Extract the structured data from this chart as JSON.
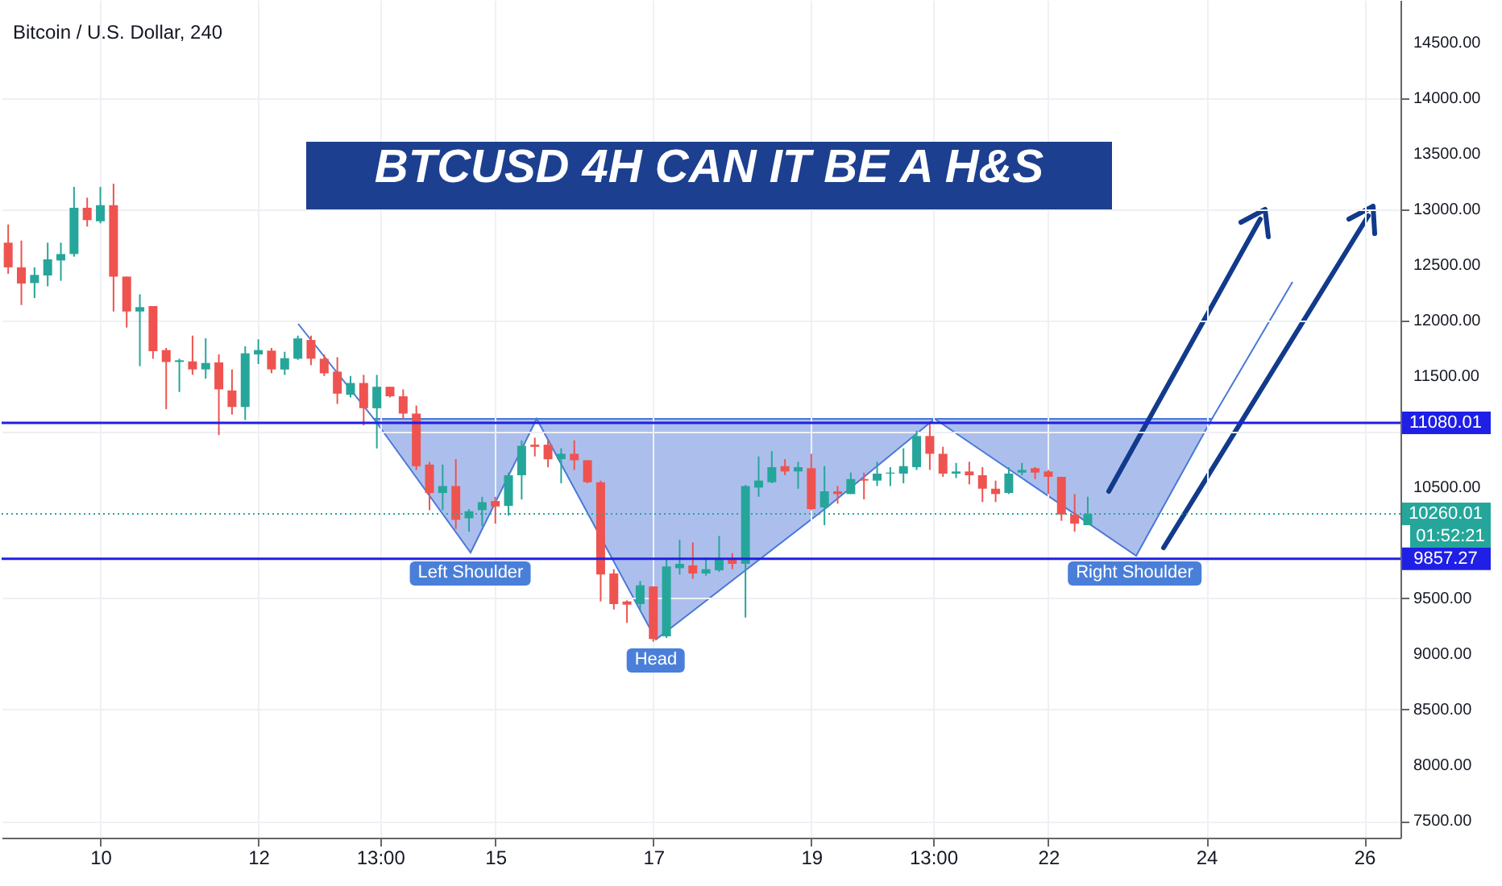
{
  "chart_data": {
    "type": "candlestick",
    "title": "BTCUSD 4H CAN IT BE A H&S",
    "subtitle": "Bitcoin / U.S. Dollar, 240",
    "x": [
      "--07-08T20:00",
      "--07-09T00:00",
      "--07-09T04:00",
      "--07-09T08:00",
      "--07-09T12:00",
      "--07-09T16:00",
      "--07-09T20:00",
      "--07-10T00:00",
      "--07-10T04:00",
      "--07-10T08:00",
      "--07-10T12:00",
      "--07-10T16:00",
      "--07-10T20:00",
      "--07-11T00:00",
      "--07-11T04:00",
      "--07-11T08:00",
      "--07-11T12:00",
      "--07-11T16:00",
      "--07-11T20:00",
      "--07-12T00:00",
      "--07-12T04:00",
      "--07-12T08:00",
      "--07-12T12:00",
      "--07-12T16:00",
      "--07-12T20:00",
      "--07-13T00:00",
      "--07-13T04:00",
      "--07-13T08:00",
      "--07-13T12:00",
      "--07-13T16:00",
      "--07-13T20:00",
      "--07-14T00:00",
      "--07-14T04:00",
      "--07-14T08:00",
      "--07-14T12:00",
      "--07-14T16:00",
      "--07-14T20:00",
      "--07-15T00:00",
      "--07-15T04:00",
      "--07-15T08:00",
      "--07-15T12:00",
      "--07-15T16:00",
      "--07-15T20:00",
      "--07-16T00:00",
      "--07-16T04:00",
      "--07-16T08:00",
      "--07-16T12:00",
      "--07-16T16:00",
      "--07-16T20:00",
      "--07-17T00:00",
      "--07-17T04:00",
      "--07-17T08:00",
      "--07-17T12:00",
      "--07-17T16:00",
      "--07-17T20:00",
      "--07-18T00:00",
      "--07-18T04:00",
      "--07-18T08:00",
      "--07-18T12:00",
      "--07-18T16:00",
      "--07-18T20:00",
      "--07-19T00:00",
      "--07-19T04:00",
      "--07-19T08:00",
      "--07-19T12:00",
      "--07-19T16:00",
      "--07-19T20:00",
      "--07-20T00:00",
      "--07-20T04:00",
      "--07-20T08:00",
      "--07-20T12:00",
      "--07-20T16:00",
      "--07-20T20:00",
      "--07-21T00:00",
      "--07-21T04:00",
      "--07-21T08:00",
      "--07-21T12:00",
      "--07-21T16:00",
      "--07-21T20:00",
      "--07-22T00:00",
      "--07-22T04:00",
      "--07-22T08:00",
      "--07-22T12:00"
    ],
    "ohlc": [
      [
        12700,
        12864,
        12420,
        12478
      ],
      [
        12478,
        12719,
        12139,
        12333
      ],
      [
        12337,
        12478,
        12202,
        12410
      ],
      [
        12405,
        12700,
        12308,
        12550
      ],
      [
        12540,
        12700,
        12357,
        12598
      ],
      [
        12598,
        13202,
        12574,
        13014
      ],
      [
        13014,
        13105,
        12845,
        12903
      ],
      [
        12893,
        13202,
        12874,
        13038
      ],
      [
        13038,
        13231,
        12081,
        12395
      ],
      [
        12395,
        12395,
        11937,
        12081
      ],
      [
        12081,
        12236,
        11589,
        12120
      ],
      [
        12130,
        12130,
        11656,
        11724
      ],
      [
        11734,
        11753,
        11202,
        11627
      ],
      [
        11627,
        11656,
        11357,
        11642
      ],
      [
        11632,
        11864,
        11512,
        11560
      ],
      [
        11560,
        11840,
        11478,
        11618
      ],
      [
        11623,
        11695,
        10970,
        11381
      ],
      [
        11371,
        11560,
        11154,
        11222
      ],
      [
        11222,
        11768,
        11106,
        11705
      ],
      [
        11695,
        11830,
        11608,
        11734
      ],
      [
        11729,
        11753,
        11526,
        11560
      ],
      [
        11559,
        11719,
        11511,
        11661
      ],
      [
        11656,
        11864,
        11646,
        11839
      ],
      [
        11825,
        11864,
        11598,
        11656
      ],
      [
        11656,
        11694,
        11501,
        11525
      ],
      [
        11540,
        11670,
        11250,
        11342
      ],
      [
        11332,
        11501,
        11308,
        11438
      ],
      [
        11438,
        11511,
        11057,
        11211
      ],
      [
        11211,
        11511,
        10849,
        11404
      ],
      [
        11404,
        11404,
        11308,
        11318
      ],
      [
        11318,
        11380,
        11115,
        11163
      ],
      [
        11163,
        11235,
        10656,
        10690
      ],
      [
        10704,
        10728,
        10294,
        10448
      ],
      [
        10448,
        10704,
        10294,
        10511
      ],
      [
        10511,
        10753,
        10125,
        10207
      ],
      [
        10221,
        10303,
        10100,
        10284
      ],
      [
        10294,
        10414,
        10149,
        10366
      ],
      [
        10376,
        10414,
        10173,
        10327
      ],
      [
        10332,
        10632,
        10245,
        10608
      ],
      [
        10608,
        10921,
        10390,
        10873
      ],
      [
        10883,
        10946,
        10777,
        10864
      ],
      [
        10883,
        10921,
        10680,
        10752
      ],
      [
        10753,
        10850,
        10536,
        10801
      ],
      [
        10801,
        10922,
        10656,
        10743
      ],
      [
        10743,
        10743,
        10536,
        10545
      ],
      [
        10545,
        10560,
        9473,
        9715
      ],
      [
        9724,
        9763,
        9401,
        9449
      ],
      [
        9473,
        9483,
        9280,
        9444
      ],
      [
        9449,
        9657,
        9401,
        9618
      ],
      [
        9608,
        9608,
        9111,
        9135
      ],
      [
        9159,
        9859,
        9145,
        9787
      ],
      [
        9772,
        10028,
        9715,
        9811
      ],
      [
        9797,
        10004,
        9676,
        9724
      ],
      [
        9724,
        9869,
        9705,
        9763
      ],
      [
        9753,
        10062,
        9739,
        9850
      ],
      [
        9850,
        9908,
        9763,
        9811
      ],
      [
        9811,
        10521,
        9328,
        10511
      ],
      [
        10497,
        10777,
        10415,
        10560
      ],
      [
        10545,
        10825,
        10536,
        10681
      ],
      [
        10690,
        10753,
        10608,
        10642
      ],
      [
        10642,
        10729,
        10487,
        10681
      ],
      [
        10671,
        10801,
        10294,
        10304
      ],
      [
        10318,
        10690,
        10159,
        10463
      ],
      [
        10463,
        10511,
        10352,
        10439
      ],
      [
        10439,
        10632,
        10439,
        10574
      ],
      [
        10574,
        10632,
        10391,
        10560
      ],
      [
        10560,
        10729,
        10511,
        10623
      ],
      [
        10623,
        10681,
        10511,
        10632
      ],
      [
        10623,
        10850,
        10536,
        10690
      ],
      [
        10681,
        11009,
        10656,
        10961
      ],
      [
        10961,
        11091,
        10656,
        10801
      ],
      [
        10801,
        10864,
        10594,
        10623
      ],
      [
        10623,
        10719,
        10584,
        10642
      ],
      [
        10642,
        10729,
        10526,
        10608
      ],
      [
        10608,
        10681,
        10367,
        10487
      ],
      [
        10487,
        10560,
        10367,
        10439
      ],
      [
        10449,
        10681,
        10439,
        10623
      ],
      [
        10632,
        10719,
        10608,
        10656
      ],
      [
        10671,
        10681,
        10574,
        10632
      ],
      [
        10642,
        10656,
        10439,
        10594
      ],
      [
        10594,
        10594,
        10198,
        10255
      ],
      [
        10255,
        10439,
        10101,
        10173
      ],
      [
        10159,
        10415,
        10159,
        10260
      ]
    ],
    "xlim": [
      "--07-08T18:00",
      "--07-26T11:00"
    ],
    "xticks": [
      {
        "value": "--07-10",
        "label": "10"
      },
      {
        "value": "--07-12",
        "label": "12"
      },
      {
        "value": "--07-13T13:00",
        "label": "13:00"
      },
      {
        "value": "--07-15",
        "label": "15"
      },
      {
        "value": "--07-17",
        "label": "17"
      },
      {
        "value": "--07-19",
        "label": "19"
      },
      {
        "value": "--07-20T13:00",
        "label": "13:00"
      },
      {
        "value": "--07-22",
        "label": "22"
      },
      {
        "value": "--07-24",
        "label": "24"
      },
      {
        "value": "--07-26",
        "label": "26"
      }
    ],
    "ylim": [
      7348,
      14883
    ],
    "yticks": [
      {
        "value": 7500,
        "label": "7500.00"
      },
      {
        "value": 8000,
        "label": "8000.00"
      },
      {
        "value": 8500,
        "label": "8500.00"
      },
      {
        "value": 9000,
        "label": "9000.00"
      },
      {
        "value": 9500,
        "label": "9500.00"
      },
      {
        "value": 10500,
        "label": "10500.00"
      },
      {
        "value": 11000,
        "label": null
      },
      {
        "value": 11500,
        "label": "11500.00"
      },
      {
        "value": 12000,
        "label": "12000.00"
      },
      {
        "value": 12500,
        "label": "12500.00"
      },
      {
        "value": 13000,
        "label": "13000.00"
      },
      {
        "value": 13500,
        "label": "13500.00"
      },
      {
        "value": 14000,
        "label": "14000.00"
      },
      {
        "value": 14500,
        "label": "14500.00"
      }
    ],
    "grid": true,
    "ref_lines": [
      {
        "axis": "y",
        "value": 11080.01,
        "label": "11080.01",
        "color": "#1f1fe6",
        "line_style": "solid"
      },
      {
        "axis": "y",
        "value": 10260.01,
        "label": "10260.01",
        "color": "#26a69a",
        "line_style": "dotted"
      },
      {
        "axis": "y",
        "value": 9857.27,
        "label": "9857.27",
        "color": "#1f1fe6",
        "line_style": "solid"
      }
    ],
    "annotations": [
      "01:52:21",
      "Left Shoulder",
      "Head",
      "Right Shoulder"
    ]
  }
}
